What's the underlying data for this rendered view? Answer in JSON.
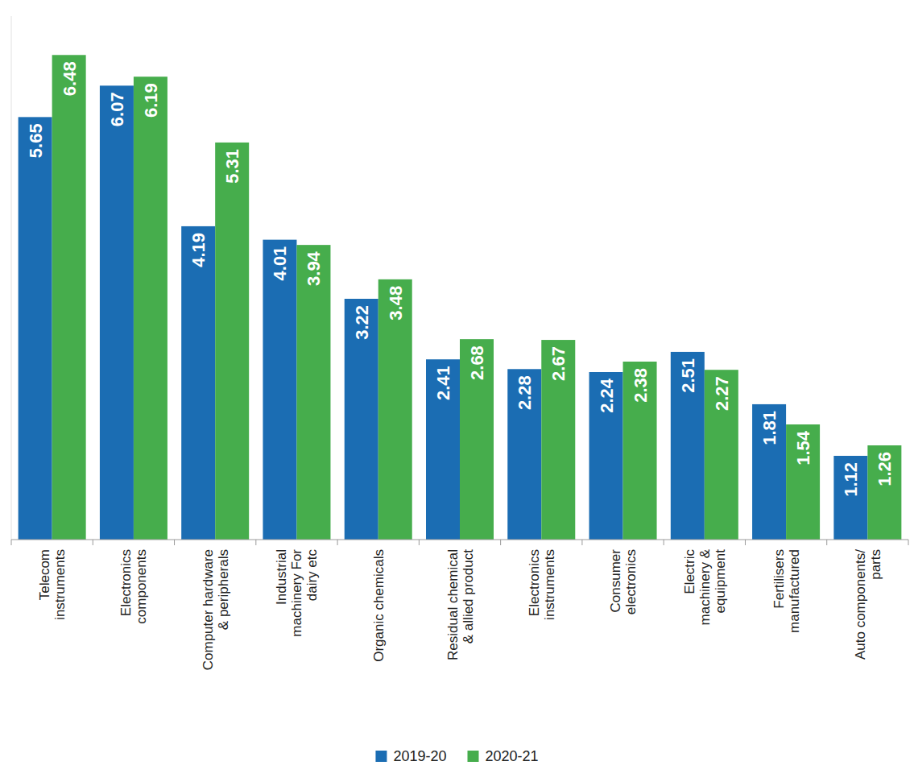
{
  "chart_data": {
    "type": "bar",
    "categories": [
      "Telecom instruments",
      "Electronics components",
      "Computer hardware & peripherals",
      "Industrial machinery For dairy etc",
      "Organic chemicals",
      "Residual chemical & allied product",
      "Electronics instruments",
      "Consumer electronics",
      "Electric machinery & equipment",
      "Fertilisers manufactured",
      "Auto components/ parts"
    ],
    "series": [
      {
        "name": "2019-20",
        "color": "#1b6db3",
        "values": [
          5.65,
          6.07,
          4.19,
          4.01,
          3.22,
          2.41,
          2.28,
          2.24,
          2.51,
          1.81,
          1.12
        ]
      },
      {
        "name": "2020-21",
        "color": "#46ad4c",
        "values": [
          6.48,
          6.19,
          5.31,
          3.94,
          3.48,
          2.68,
          2.67,
          2.38,
          2.27,
          1.54,
          1.26
        ]
      }
    ],
    "ylim": [
      0,
      7
    ],
    "data_labels": true,
    "tick_labels": "x",
    "legend": "bottom"
  }
}
